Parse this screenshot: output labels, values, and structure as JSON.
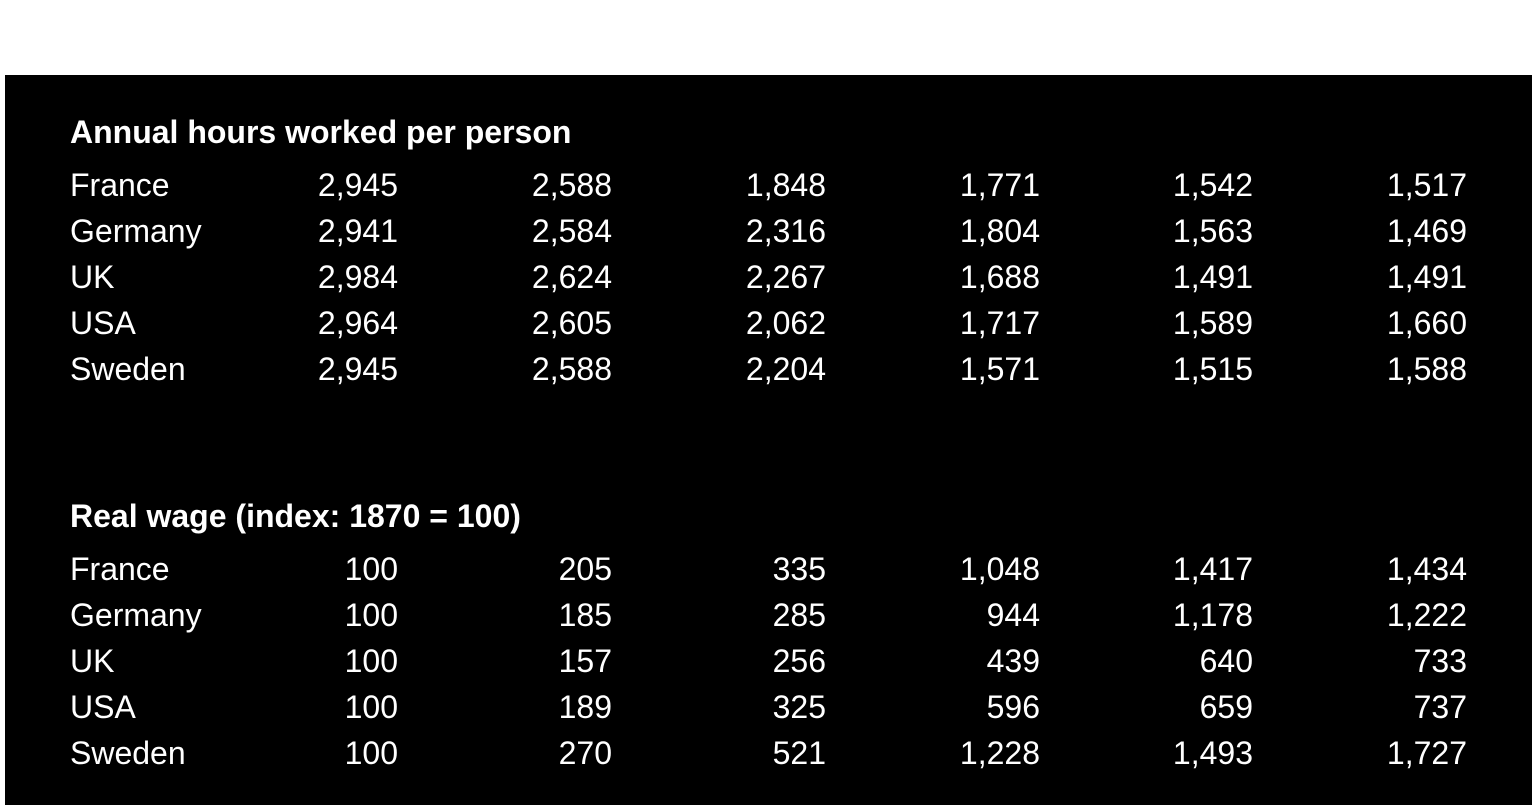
{
  "sections": [
    {
      "title": "Annual hours worked per person",
      "rows": [
        {
          "label": "France",
          "values": [
            "2,945",
            "2,588",
            "1,848",
            "1,771",
            "1,542",
            "1,517"
          ]
        },
        {
          "label": "Germany",
          "values": [
            "2,941",
            "2,584",
            "2,316",
            "1,804",
            "1,563",
            "1,469"
          ]
        },
        {
          "label": "UK",
          "values": [
            "2,984",
            "2,624",
            "2,267",
            "1,688",
            "1,491",
            "1,491"
          ]
        },
        {
          "label": "USA",
          "values": [
            "2,964",
            "2,605",
            "2,062",
            "1,717",
            "1,589",
            "1,660"
          ]
        },
        {
          "label": "Sweden",
          "values": [
            "2,945",
            "2,588",
            "2,204",
            "1,571",
            "1,515",
            "1,588"
          ]
        }
      ]
    },
    {
      "title": "Real wage (index: 1870 = 100)",
      "rows": [
        {
          "label": "France",
          "values": [
            "100",
            "205",
            "335",
            "1,048",
            "1,417",
            "1,434"
          ]
        },
        {
          "label": "Germany",
          "values": [
            "100",
            "185",
            "285",
            "944",
            "1,178",
            "1,222"
          ]
        },
        {
          "label": "UK",
          "values": [
            "100",
            "157",
            "256",
            "439",
            "640",
            "733"
          ]
        },
        {
          "label": "USA",
          "values": [
            "100",
            "189",
            "325",
            "596",
            "659",
            "737"
          ]
        },
        {
          "label": "Sweden",
          "values": [
            "100",
            "270",
            "521",
            "1,228",
            "1,493",
            "1,727"
          ]
        }
      ]
    }
  ]
}
